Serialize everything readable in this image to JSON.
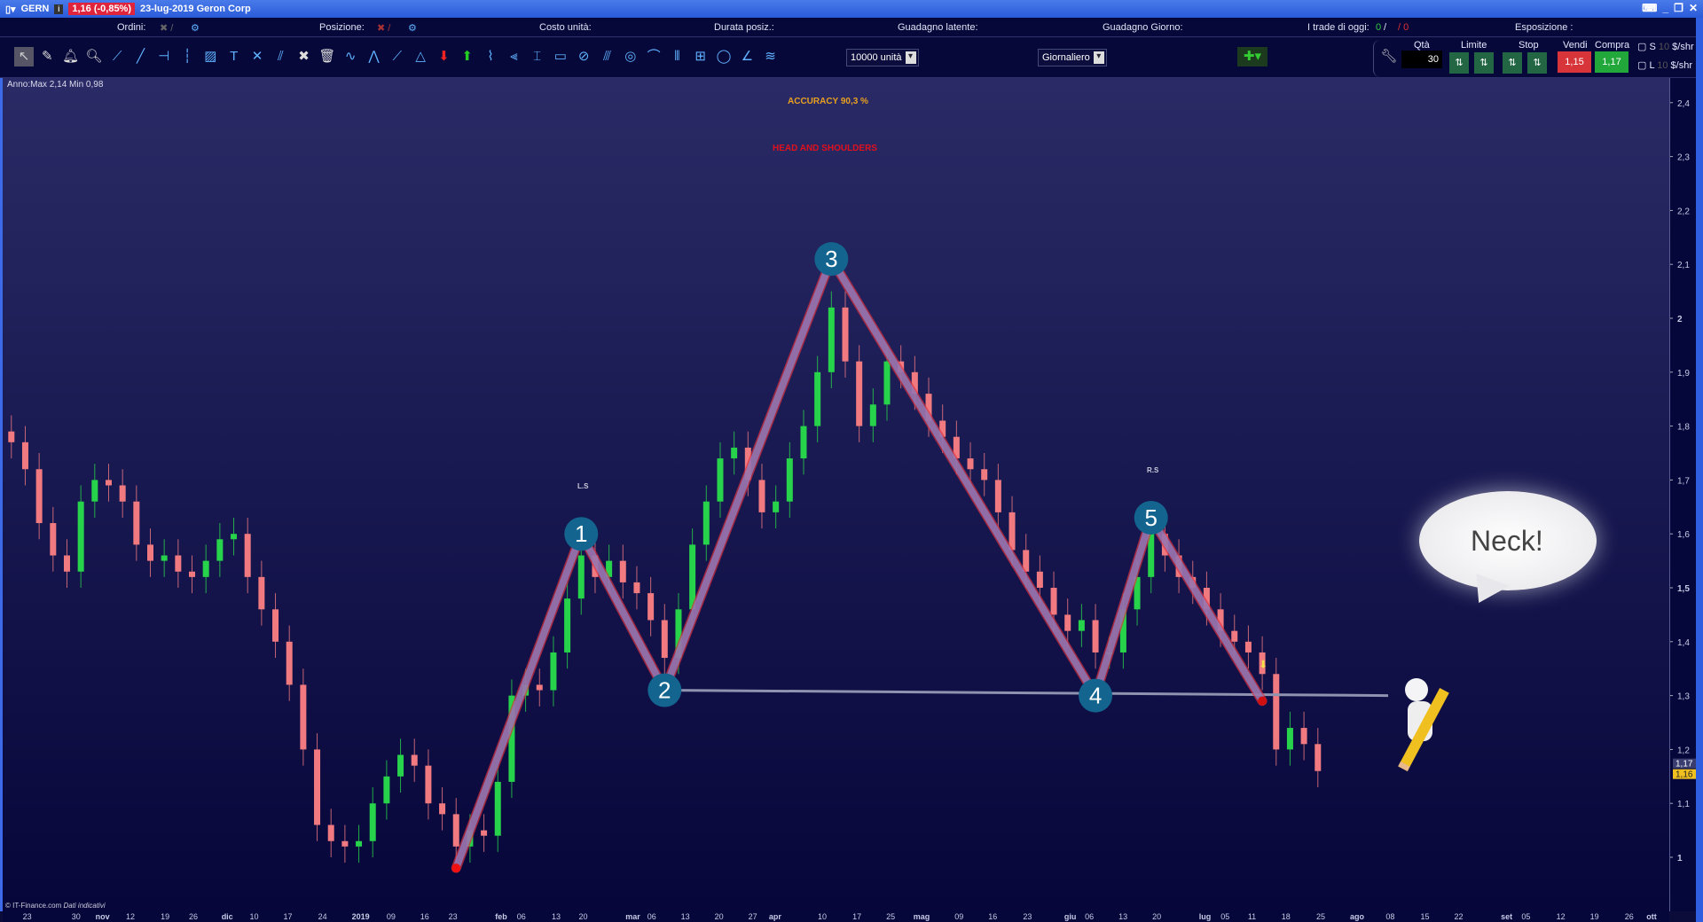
{
  "titlebar": {
    "symbol": "GERN",
    "price_change": "1,16 (-0,85%)",
    "date_name": "23-lug-2019 Geron Corp"
  },
  "header": {
    "ordini": "Ordini:",
    "posizione": "Posizione:",
    "costo": "Costo unità:",
    "durata": "Durata posiz.:",
    "latente": "Guadagno latente:",
    "giorno": "Guadagno Giorno:",
    "trade": "I trade di oggi:",
    "trade_win": "0",
    "trade_sep": "/",
    "trade_loss": "/ 0",
    "esposizione": "Esposizione :"
  },
  "toolbar": {
    "units": "10000 unità",
    "period": "Giornaliero",
    "tools": [
      "cursor-icon",
      "eraser-icon",
      "bell-icon",
      "zoom-icon",
      "segment-icon",
      "line-icon",
      "hline-icon",
      "vline-icon",
      "fib-icon",
      "text-icon",
      "cross-icon",
      "parallel-icon",
      "tools-icon",
      "trash-icon",
      "zigzag-icon",
      "pattern-icon",
      "fan-icon",
      "triangle-icon",
      "sell-arrow-icon",
      "buy-arrow-icon",
      "cycle-icon",
      "pitchfork-icon",
      "channel-icon",
      "rectangle-icon",
      "ellipse-icon",
      "regression-icon",
      "spiral-icon",
      "arc-icon",
      "grid-icon",
      "gann-icon",
      "circle-icon",
      "angle-icon",
      "wave-icon"
    ]
  },
  "order_panel": {
    "qty_label": "Qtà",
    "qty": "30",
    "limit_label": "Limite",
    "stop_label": "Stop",
    "sell_label": "Vendi",
    "buy_label": "Compra",
    "sell_price": "1,15",
    "buy_price": "1,17",
    "s_label": "S",
    "l_label": "L",
    "s_val": "10",
    "l_val": "10",
    "unit": "$/shr"
  },
  "chart_info": "Anno:Max 2,14 Min 0,98",
  "annotations": {
    "accuracy": "ACCURACY 90,3 %",
    "pattern": "HEAD AND SHOULDERS",
    "ls": "L.S",
    "rs": "R.S",
    "bubble": "Neck!",
    "copyright": "© IT-Finance.com",
    "disclaimer": "Dati indicativi"
  },
  "colors": {
    "up": "#27d34a",
    "down": "#f07a80",
    "pattern_line": "#8a85c8",
    "pattern_edge": "#e0303c",
    "marker": "#13658f",
    "neckline": "#8f93b0",
    "accuracy": "#e8a020",
    "pattern_title": "#e0101c"
  },
  "chart_data": {
    "type": "candlestick",
    "ylim": [
      0.95,
      2.45
    ],
    "y_ticks": [
      "2,4",
      "2,3",
      "2,2",
      "2,1",
      "2",
      "1,9",
      "1,8",
      "1,7",
      "1,6",
      "1,5",
      "1,4",
      "1,3",
      "1,2",
      "1,1",
      "1"
    ],
    "y_tick_values": [
      2.4,
      2.3,
      2.2,
      2.1,
      2.0,
      1.9,
      1.8,
      1.7,
      1.6,
      1.5,
      1.4,
      1.3,
      1.2,
      1.1,
      1.0
    ],
    "last_prices": [
      "1,17",
      "1,16"
    ],
    "x_ticks": [
      "23",
      "30",
      "nov",
      "12",
      "19",
      "26",
      "dic",
      "10",
      "17",
      "24",
      "2019",
      "09",
      "16",
      "23",
      "feb",
      "06",
      "13",
      "20",
      "mar",
      "06",
      "13",
      "20",
      "27",
      "apr",
      "10",
      "17",
      "25",
      "mag",
      "09",
      "16",
      "23",
      "giu",
      "06",
      "13",
      "20",
      "lug",
      "05",
      "11",
      "18",
      "25",
      "ago",
      "08",
      "15",
      "22",
      "set",
      "05",
      "12",
      "19",
      "26",
      "ott"
    ],
    "closes": [
      1.77,
      1.72,
      1.62,
      1.56,
      1.53,
      1.66,
      1.7,
      1.69,
      1.66,
      1.58,
      1.55,
      1.56,
      1.53,
      1.52,
      1.55,
      1.59,
      1.6,
      1.52,
      1.46,
      1.4,
      1.32,
      1.2,
      1.06,
      1.03,
      1.02,
      1.03,
      1.1,
      1.15,
      1.19,
      1.17,
      1.1,
      1.08,
      1.02,
      1.05,
      1.04,
      1.14,
      1.3,
      1.32,
      1.31,
      1.38,
      1.48,
      1.56,
      1.52,
      1.55,
      1.51,
      1.49,
      1.44,
      1.37,
      1.46,
      1.58,
      1.66,
      1.74,
      1.76,
      1.7,
      1.64,
      1.66,
      1.74,
      1.8,
      1.9,
      2.02,
      1.92,
      1.8,
      1.84,
      1.92,
      1.9,
      1.86,
      1.81,
      1.78,
      1.74,
      1.72,
      1.7,
      1.64,
      1.57,
      1.53,
      1.5,
      1.45,
      1.42,
      1.44,
      1.38,
      1.38,
      1.46,
      1.52,
      1.6,
      1.56,
      1.52,
      1.5,
      1.46,
      1.42,
      1.4,
      1.38,
      1.34,
      1.2,
      1.24,
      1.21,
      1.16
    ],
    "pattern_points": [
      {
        "label": "1",
        "index": 41,
        "price": 1.6
      },
      {
        "label": "2",
        "index": 47,
        "price": 1.31
      },
      {
        "label": "3",
        "index": 59,
        "price": 2.11
      },
      {
        "label": "4",
        "index": 78,
        "price": 1.3
      },
      {
        "label": "5",
        "index": 82,
        "price": 1.63
      }
    ],
    "pattern_start": {
      "index": 32,
      "price": 0.98
    },
    "breakout": {
      "index": 90,
      "price": 1.29
    },
    "neckline": [
      1.31,
      1.3
    ]
  }
}
